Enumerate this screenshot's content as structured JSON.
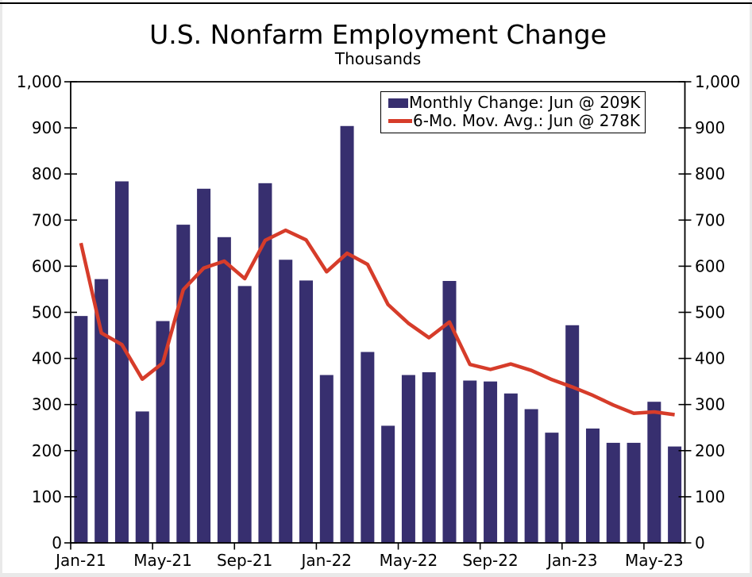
{
  "page": {
    "background": "#ffffff",
    "edge_color": "#e9e9e9",
    "top_rule_color": "#000000"
  },
  "chart_data": {
    "type": "bar",
    "title": "U.S. Nonfarm Employment Change",
    "subtitle": "Thousands",
    "categories": [
      "Jan-21",
      "Feb-21",
      "Mar-21",
      "Apr-21",
      "May-21",
      "Jun-21",
      "Jul-21",
      "Aug-21",
      "Sep-21",
      "Oct-21",
      "Nov-21",
      "Dec-21",
      "Jan-22",
      "Feb-22",
      "Mar-22",
      "Apr-22",
      "May-22",
      "Jun-22",
      "Jul-22",
      "Aug-22",
      "Sep-22",
      "Oct-22",
      "Nov-22",
      "Dec-22",
      "Jan-23",
      "Feb-23",
      "Mar-23",
      "Apr-23",
      "May-23",
      "Jun-23"
    ],
    "series": [
      {
        "name": "Monthly Change: Jun @ 209K",
        "type": "bar",
        "color": "#372f6f",
        "values": [
          492,
          572,
          784,
          285,
          481,
          690,
          768,
          663,
          557,
          780,
          614,
          569,
          364,
          904,
          414,
          254,
          364,
          370,
          568,
          352,
          350,
          324,
          290,
          239,
          472,
          248,
          217,
          217,
          306,
          209
        ]
      },
      {
        "name": "6-Mo. Mov. Avg.: Jun @ 278K",
        "type": "line",
        "color": "#d63c2a",
        "values": [
          650,
          455,
          430,
          355,
          390,
          549,
          596,
          611,
          573,
          656,
          678,
          657,
          588,
          628,
          604,
          517,
          476,
          445,
          479,
          387,
          376,
          388,
          374,
          354,
          338,
          320,
          299,
          281,
          284,
          278
        ]
      }
    ],
    "ylim": [
      0,
      1000
    ],
    "y_tick_step": 100,
    "y_tick_labels": [
      "0",
      "100",
      "200",
      "300",
      "400",
      "500",
      "600",
      "700",
      "800",
      "900",
      "1,000"
    ],
    "y_axis_sides": "both",
    "x_tick_labels": [
      "Jan-21",
      "May-21",
      "Sep-21",
      "Jan-22",
      "May-22",
      "Sep-22",
      "Jan-23",
      "May-23"
    ],
    "x_tick_every": 4,
    "grid": false,
    "legend_position": "top-right-inside",
    "axis_color": "#000000",
    "text_color": "#000000"
  }
}
